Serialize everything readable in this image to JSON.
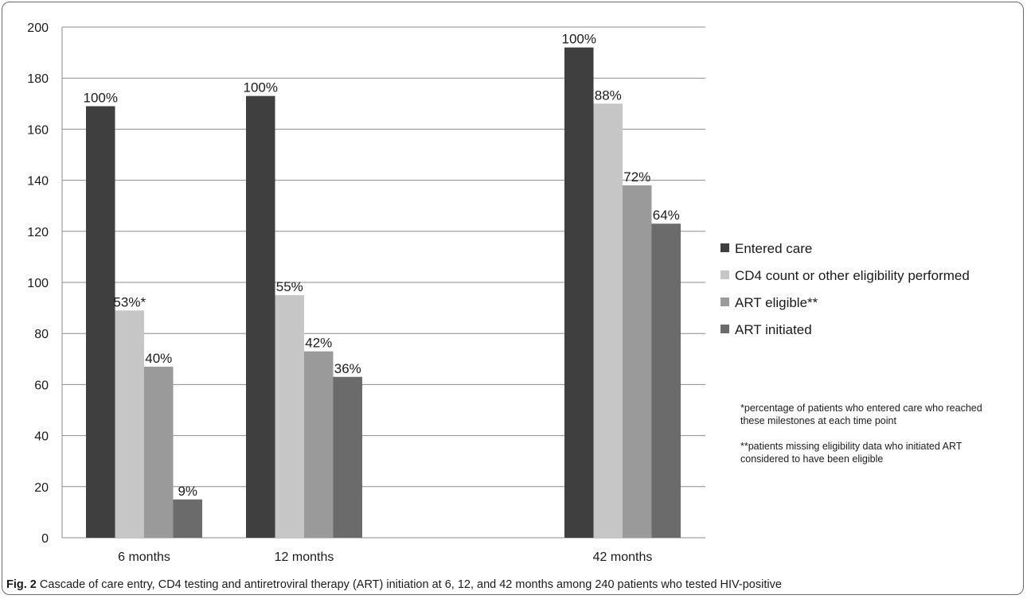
{
  "chart_data": {
    "type": "bar",
    "categories": [
      "6 months",
      "12 months",
      "42 months"
    ],
    "series": [
      {
        "name": "Entered care",
        "color": "#3f3f3f",
        "values": [
          169,
          173,
          192
        ],
        "labels": [
          "100%",
          "100%",
          "100%"
        ]
      },
      {
        "name": "CD4 count or other eligibility performed",
        "color": "#c6c6c6",
        "values": [
          89,
          95,
          170
        ],
        "labels": [
          "53%*",
          "55%",
          "88%"
        ]
      },
      {
        "name": "ART eligible**",
        "color": "#9a9a9a",
        "values": [
          67,
          73,
          138
        ],
        "labels": [
          "40%",
          "42%",
          "72%"
        ]
      },
      {
        "name": "ART initiated",
        "color": "#6b6b6b",
        "values": [
          15,
          63,
          123
        ],
        "labels": [
          "9%",
          "36%",
          "64%"
        ]
      }
    ],
    "ylim": [
      0,
      200
    ],
    "yticks": [
      0,
      20,
      40,
      60,
      80,
      100,
      120,
      140,
      160,
      180,
      200
    ],
    "grid": true,
    "legend_position": "right"
  },
  "notes": {
    "note1": "*percentage of patients who entered care who reached these milestones at each time point",
    "note2": "**patients missing eligibility data who initiated ART considered to have been eligible"
  },
  "caption": {
    "label": "Fig. 2",
    "text": " Cascade of care entry, CD4 testing and antiretroviral therapy (ART) initiation at 6, 12, and 42 months among 240 patients who tested HIV-positive"
  }
}
